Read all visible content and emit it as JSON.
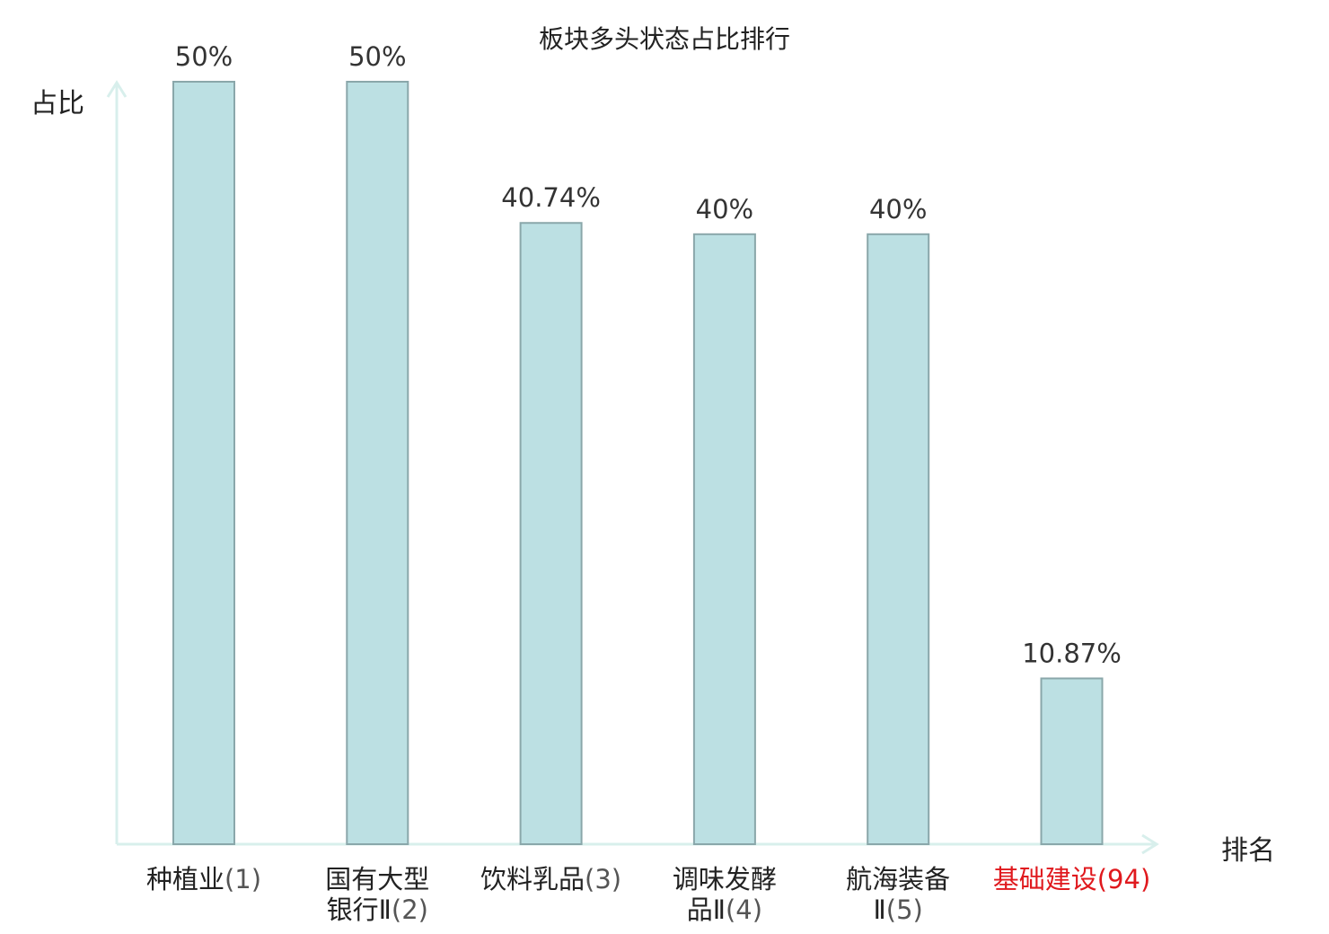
{
  "chart_data": {
    "type": "bar",
    "title": "板块多头状态占比排行",
    "ylabel": "占比",
    "xlabel": "排名",
    "categories": [
      {
        "name_lines": [
          "种植业"
        ],
        "rank": "(1)",
        "highlight": false
      },
      {
        "name_lines": [
          "国有大型",
          "银行Ⅱ"
        ],
        "rank": "(2)",
        "highlight": false
      },
      {
        "name_lines": [
          "饮料乳品"
        ],
        "rank": "(3)",
        "highlight": false
      },
      {
        "name_lines": [
          "调味发酵",
          "品Ⅱ"
        ],
        "rank": "(4)",
        "highlight": false
      },
      {
        "name_lines": [
          "航海装备",
          "Ⅱ"
        ],
        "rank": "(5)",
        "highlight": false
      },
      {
        "name_lines": [
          "基础建设"
        ],
        "rank": "(94)",
        "highlight": true
      }
    ],
    "values": [
      50,
      50,
      40.74,
      40,
      40,
      10.87
    ],
    "value_labels": [
      "50%",
      "50%",
      "40.74%",
      "40%",
      "40%",
      "10.87%"
    ],
    "ylim": [
      0,
      50
    ],
    "grid": false,
    "legend": "none",
    "colors": {
      "bar_fill": "#bce0e3",
      "bar_stroke": "#8aa7aa",
      "axis": "#d8efec",
      "highlight_label": "#e0191e",
      "text": "#222222"
    }
  }
}
